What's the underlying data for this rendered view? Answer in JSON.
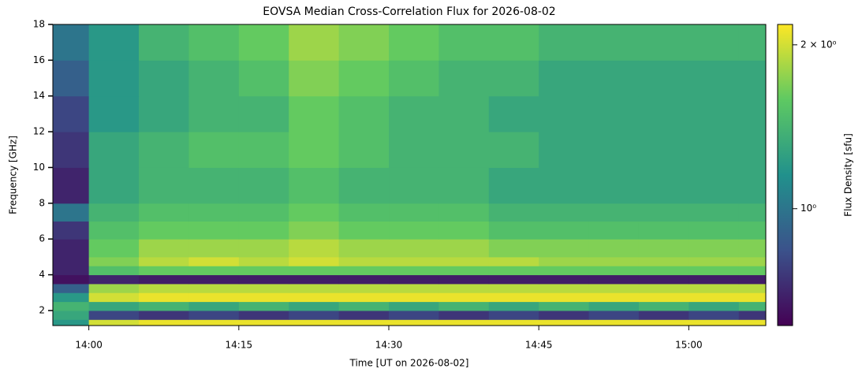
{
  "chart_data": {
    "type": "heatmap",
    "title": "EOVSA Median Cross-Correlation Flux for 2026-08-02",
    "xlabel": "Time [UT on 2026-08-02]",
    "ylabel": "Frequency [GHz]",
    "colorbar_label": "Flux Density [sfu]",
    "colormap": "viridis",
    "color_log": true,
    "x": [
      836.4,
      840,
      845,
      850,
      855,
      860,
      865,
      870,
      875,
      880,
      885,
      890,
      895,
      900,
      905
    ],
    "y": [
      1.16,
      1.5,
      2,
      2.5,
      3,
      3.5,
      4,
      4.5,
      5,
      6,
      7,
      8,
      10,
      12,
      14,
      16
    ],
    "xlim": [
      836.4,
      907.7
    ],
    "ylim": [
      1.16,
      18
    ],
    "clim": [
      0.61,
      2.18
    ],
    "xticks": [
      {
        "value": 840,
        "label": "14:00"
      },
      {
        "value": 855,
        "label": "14:15"
      },
      {
        "value": 870,
        "label": "14:30"
      },
      {
        "value": 885,
        "label": "14:45"
      },
      {
        "value": 900,
        "label": "15:00"
      }
    ],
    "yticks": [
      2,
      4,
      6,
      8,
      10,
      12,
      14,
      16,
      18
    ],
    "cticks": [
      {
        "value": 1,
        "label": "10⁰"
      },
      {
        "value": 2,
        "label": "2 × 10⁰"
      }
    ],
    "z": [
      [
        1.2,
        2.0,
        2.1,
        2.1,
        2.1,
        2.1,
        2.1,
        2.1,
        2.1,
        2.1,
        2.1,
        2.1,
        2.1,
        2.1,
        2.1
      ],
      [
        1.3,
        0.8,
        0.75,
        0.8,
        0.75,
        0.8,
        0.75,
        0.8,
        0.75,
        0.8,
        0.75,
        0.8,
        0.75,
        0.8,
        0.75
      ],
      [
        1.4,
        1.3,
        1.4,
        1.3,
        1.4,
        1.3,
        1.4,
        1.3,
        1.4,
        1.3,
        1.4,
        1.3,
        1.4,
        1.3,
        1.4
      ],
      [
        1.2,
        2.0,
        2.1,
        2.1,
        2.1,
        2.1,
        2.1,
        2.1,
        2.1,
        2.1,
        2.1,
        2.1,
        2.1,
        2.1,
        2.1
      ],
      [
        0.9,
        1.8,
        1.9,
        1.9,
        1.9,
        1.9,
        1.9,
        1.9,
        1.9,
        1.9,
        1.9,
        1.9,
        1.9,
        1.9,
        1.9
      ],
      [
        0.65,
        0.7,
        0.68,
        0.68,
        0.68,
        0.68,
        0.68,
        0.68,
        0.68,
        0.68,
        0.68,
        0.68,
        0.68,
        0.68,
        0.68
      ],
      [
        0.7,
        1.5,
        1.6,
        1.6,
        1.6,
        1.6,
        1.6,
        1.6,
        1.6,
        1.6,
        1.6,
        1.6,
        1.6,
        1.6,
        1.6
      ],
      [
        0.7,
        1.7,
        1.9,
        2.0,
        1.9,
        2.0,
        1.9,
        1.9,
        1.9,
        1.9,
        1.8,
        1.8,
        1.8,
        1.8,
        1.8
      ],
      [
        0.7,
        1.6,
        1.8,
        1.8,
        1.8,
        1.9,
        1.8,
        1.8,
        1.8,
        1.7,
        1.7,
        1.7,
        1.7,
        1.7,
        1.7
      ],
      [
        0.75,
        1.5,
        1.6,
        1.6,
        1.6,
        1.7,
        1.6,
        1.6,
        1.6,
        1.5,
        1.5,
        1.5,
        1.5,
        1.5,
        1.5
      ],
      [
        1.0,
        1.4,
        1.5,
        1.5,
        1.5,
        1.6,
        1.5,
        1.5,
        1.5,
        1.4,
        1.4,
        1.4,
        1.4,
        1.4,
        1.4
      ],
      [
        0.7,
        1.3,
        1.4,
        1.4,
        1.4,
        1.5,
        1.4,
        1.4,
        1.4,
        1.3,
        1.3,
        1.3,
        1.3,
        1.3,
        1.3
      ],
      [
        0.75,
        1.3,
        1.4,
        1.5,
        1.5,
        1.6,
        1.5,
        1.4,
        1.4,
        1.4,
        1.3,
        1.3,
        1.3,
        1.3,
        1.3
      ],
      [
        0.8,
        1.2,
        1.3,
        1.4,
        1.4,
        1.6,
        1.5,
        1.4,
        1.4,
        1.3,
        1.3,
        1.3,
        1.3,
        1.3,
        1.3
      ],
      [
        0.9,
        1.2,
        1.3,
        1.4,
        1.5,
        1.7,
        1.6,
        1.5,
        1.4,
        1.4,
        1.3,
        1.3,
        1.3,
        1.3,
        1.3
      ],
      [
        1.0,
        1.2,
        1.4,
        1.5,
        1.6,
        1.8,
        1.7,
        1.6,
        1.5,
        1.5,
        1.4,
        1.4,
        1.4,
        1.4,
        1.4
      ]
    ]
  }
}
